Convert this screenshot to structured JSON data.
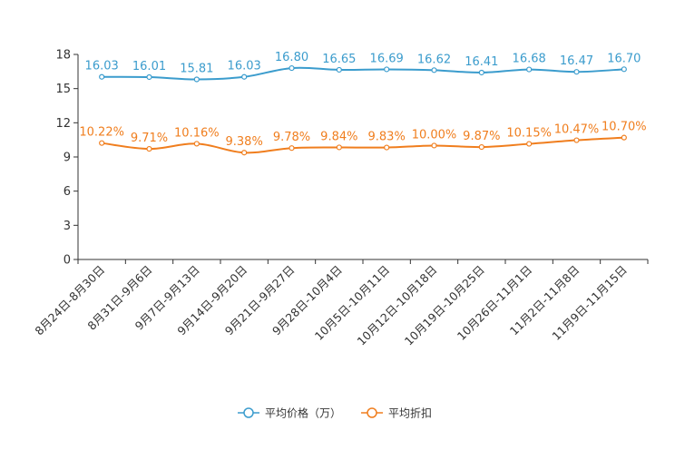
{
  "chart_data": {
    "type": "line",
    "categories": [
      "8月24日-8月30日",
      "8月31日-9月6日",
      "9月7日-9月13日",
      "9月14日-9月20日",
      "9月21日-9月27日",
      "9月28日-10月4日",
      "10月5日-10月11日",
      "10月12日-10月18日",
      "10月19日-10月25日",
      "10月26日-11月1日",
      "11月2日-11月8日",
      "11月9日-11月15日"
    ],
    "series": [
      {
        "name": "平均价格（万）",
        "color": "#3b9ccd",
        "values": [
          16.03,
          16.01,
          15.81,
          16.03,
          16.8,
          16.65,
          16.69,
          16.62,
          16.41,
          16.68,
          16.47,
          16.7
        ],
        "labels": [
          "16.03",
          "16.01",
          "15.81",
          "16.03",
          "16.80",
          "16.65",
          "16.69",
          "16.62",
          "16.41",
          "16.68",
          "16.47",
          "16.70"
        ]
      },
      {
        "name": "平均折扣",
        "color": "#f07e1e",
        "values": [
          10.22,
          9.71,
          10.16,
          9.38,
          9.78,
          9.84,
          9.83,
          10.0,
          9.87,
          10.15,
          10.47,
          10.7
        ],
        "labels": [
          "10.22%",
          "9.71%",
          "10.16%",
          "9.38%",
          "9.78%",
          "9.84%",
          "9.83%",
          "10.00%",
          "9.87%",
          "10.15%",
          "10.47%",
          "10.70%"
        ]
      }
    ],
    "yticks": [
      0,
      3,
      6,
      9,
      12,
      15,
      18
    ],
    "ylim": [
      0,
      18
    ],
    "title": "",
    "xlabel": "",
    "ylabel": "",
    "legend_position": "bottom-center"
  }
}
